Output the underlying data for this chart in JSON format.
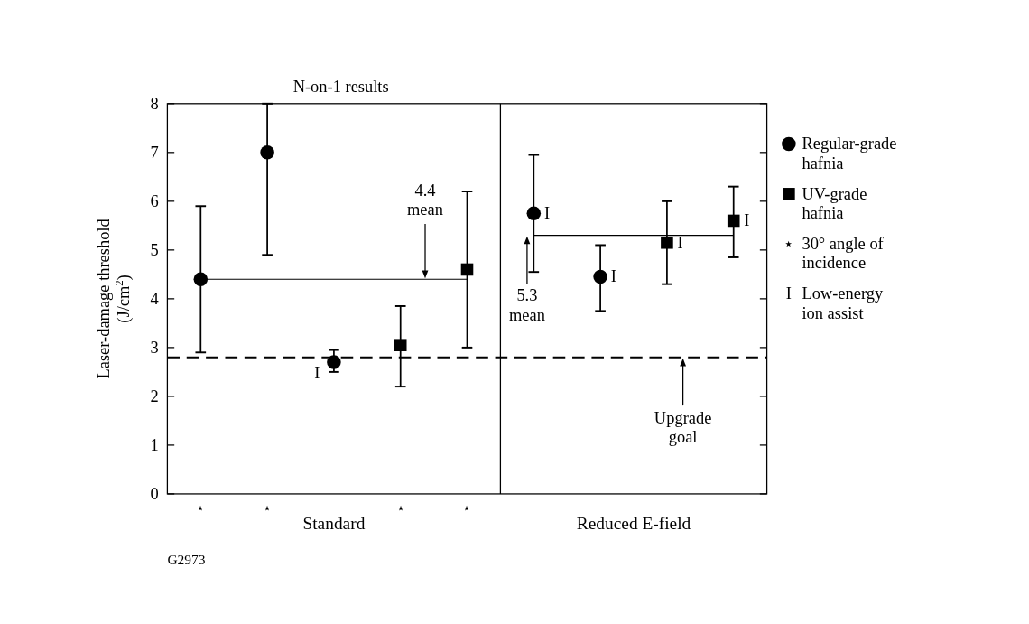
{
  "chart_data": {
    "type": "scatter",
    "title": "N-on-1 results",
    "ylabel": "Laser-damage threshold (J/cm$^{2}$)",
    "categories": [
      "⋆",
      "⋆",
      null,
      "⋆",
      "⋆",
      null,
      null,
      null,
      null
    ],
    "ylim": [
      0,
      8
    ],
    "yticks": [
      0,
      1,
      2,
      3,
      4,
      5,
      6,
      7,
      8
    ],
    "grid": false,
    "legend": "right",
    "series": [
      {
        "name": "Regular-grade hafnia",
        "color": "#000000",
        "marker": "circle",
        "values": [
          4.4,
          7.0,
          2.7,
          null,
          null,
          5.75,
          4.45,
          null,
          null
        ],
        "value_labels": [
          null,
          null,
          "I",
          null,
          null,
          "I",
          "I",
          null,
          null
        ],
        "errors": [
          [
            2.9,
            5.9
          ],
          [
            4.9,
            8
          ],
          [
            2.5,
            2.95
          ],
          null,
          null,
          [
            4.55,
            6.95
          ],
          [
            3.75,
            5.1
          ],
          null,
          null
        ]
      },
      {
        "name": "UV-grade hafnia",
        "color": "#000000",
        "marker": "square",
        "values": [
          null,
          null,
          null,
          3.05,
          4.6,
          null,
          null,
          5.15,
          5.6
        ],
        "value_labels": [
          null,
          null,
          null,
          null,
          null,
          null,
          null,
          "I",
          "I"
        ],
        "errors": [
          null,
          null,
          null,
          [
            2.2,
            3.85
          ],
          [
            3.0,
            6.2
          ],
          null,
          null,
          [
            4.3,
            6.0
          ],
          [
            4.85,
            6.3
          ]
        ]
      },
      {
        "type": "line",
        "color": "#000000",
        "line_style": "solid",
        "values": [
          4.4,
          4.4,
          4.4,
          4.4,
          4.4,
          null,
          null,
          null,
          null
        ]
      },
      {
        "type": "line",
        "color": "#000000",
        "line_style": "solid",
        "values": [
          null,
          null,
          null,
          null,
          null,
          5.3,
          5.3,
          5.3,
          5.3
        ]
      }
    ],
    "ref_lines": [
      {
        "axis": "y",
        "value": 2.8,
        "label": "Upgrade goal",
        "line_style": "dashed",
        "color": "#000000"
      }
    ],
    "annotations": [
      "G2973",
      "Standard",
      "Reduced E-field",
      "4.4 mean",
      "5.3 mean",
      "⋆ 30° angle of incidence",
      "I Low-energy ion assist"
    ]
  }
}
